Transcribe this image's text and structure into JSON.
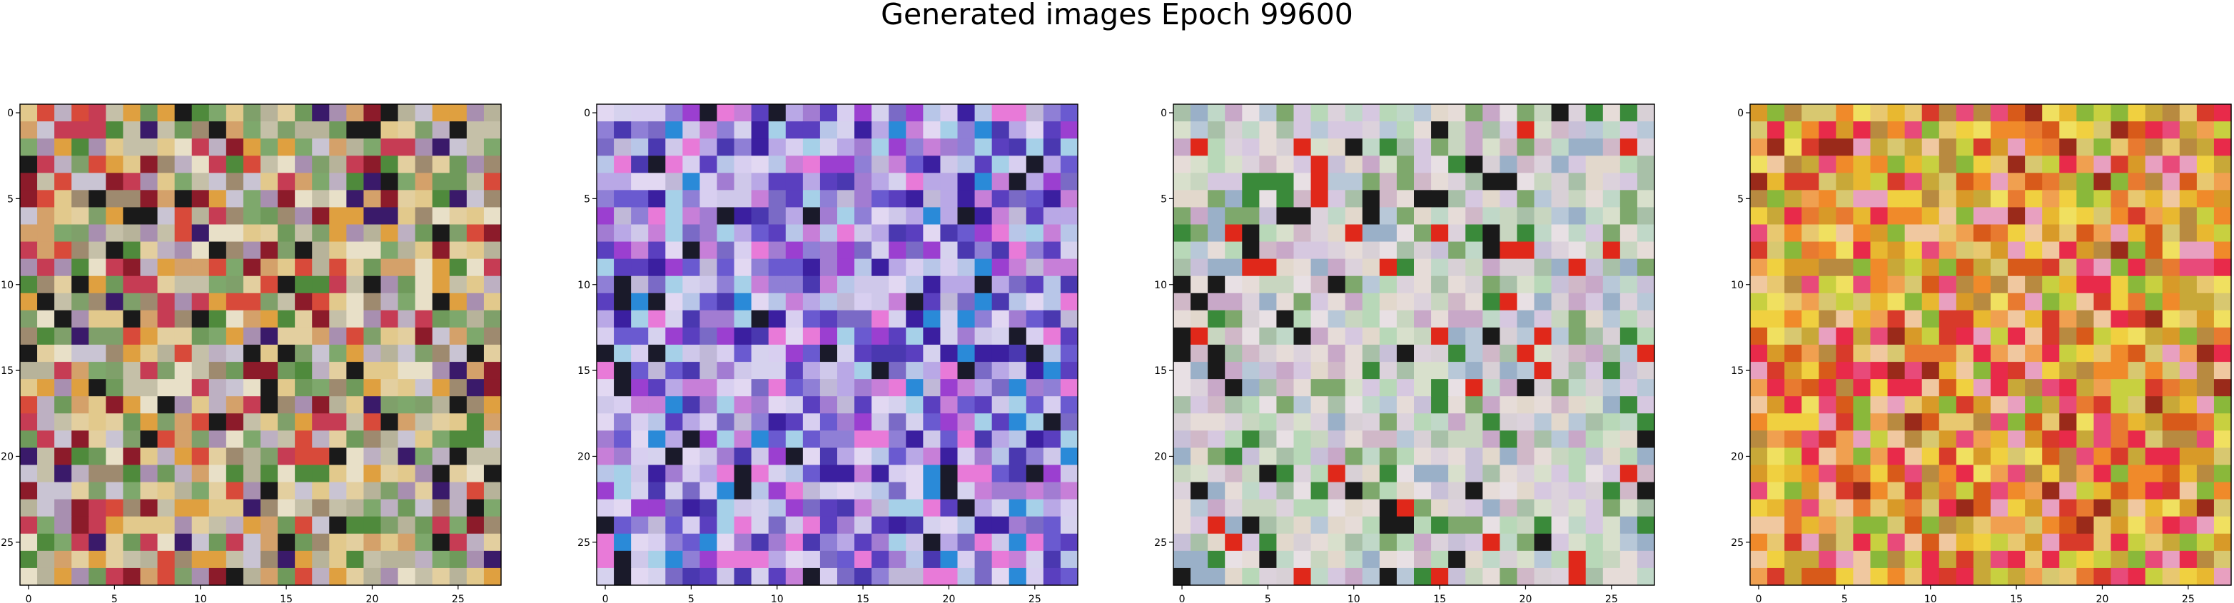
{
  "figure": {
    "title": "Generated images Epoch 99600"
  },
  "chart_data": [
    {
      "type": "heatmap",
      "title": "",
      "xlabel": "",
      "ylabel": "",
      "grid": "28x28 RGB image",
      "xlim": [
        -0.5,
        27.5
      ],
      "ylim": [
        27.5,
        -0.5
      ],
      "x_ticks": [
        0,
        5,
        10,
        15,
        20,
        25
      ],
      "y_ticks": [
        0,
        5,
        10,
        15,
        20,
        25
      ],
      "palette": [
        "#7fa06a",
        "#b7b39a",
        "#c5c0a8",
        "#6f9a5b",
        "#d4a16a",
        "#e2c98c",
        "#8c1b2a",
        "#1a1a1a",
        "#d84a3a",
        "#c9c4d3",
        "#a88fb0",
        "#e3cf9f",
        "#4f8a3c",
        "#c63c54",
        "#9e8a6f",
        "#e8e0c8",
        "#3a1a6a",
        "#dfa040",
        "#7ea86c",
        "#bdb0c2"
      ],
      "seed": 101
    },
    {
      "type": "heatmap",
      "title": "",
      "xlabel": "",
      "ylabel": "",
      "grid": "28x28 RGB image",
      "xlim": [
        -0.5,
        27.5
      ],
      "ylim": [
        27.5,
        -0.5
      ],
      "x_ticks": [
        0,
        5,
        10,
        15,
        20,
        25
      ],
      "y_ticks": [
        0,
        5,
        10,
        15,
        20,
        25
      ],
      "palette": [
        "#8f7fd6",
        "#b9a8e6",
        "#d8cff0",
        "#5a3fbf",
        "#3b1fa0",
        "#c77fd8",
        "#e2d8f2",
        "#7a6ac6",
        "#1a1a2a",
        "#a6d0e8",
        "#c0b8d8",
        "#6a5ad0",
        "#d6d2ee",
        "#9b3fd0",
        "#e87ad8",
        "#b8c6e8",
        "#4a38b0",
        "#cfc8ea",
        "#a27cd2",
        "#2a8ad8"
      ],
      "seed": 202
    },
    {
      "type": "heatmap",
      "title": "",
      "xlabel": "",
      "ylabel": "",
      "grid": "28x28 RGB image",
      "xlim": [
        -0.5,
        27.5
      ],
      "ylim": [
        27.5,
        -0.5
      ],
      "x_ticks": [
        0,
        5,
        10,
        15,
        20,
        25
      ],
      "y_ticks": [
        0,
        5,
        10,
        15,
        20,
        25
      ],
      "palette": [
        "#d8d0d6",
        "#c8d6c0",
        "#e6dcd8",
        "#b8c8d8",
        "#d6c8e0",
        "#c0d8c8",
        "#e8e0e4",
        "#a8c0a8",
        "#d0b8c8",
        "#1a1a1a",
        "#e0281a",
        "#3a8a3a",
        "#b8d8b8",
        "#c8c0d8",
        "#e2d8cc",
        "#9ab0c8",
        "#d8e0cc",
        "#c8a8c8",
        "#7ea86c",
        "#dcd2dc"
      ],
      "seed": 303
    },
    {
      "type": "heatmap",
      "title": "",
      "xlabel": "",
      "ylabel": "",
      "grid": "28x28 RGB image",
      "xlim": [
        -0.5,
        27.5
      ],
      "ylim": [
        27.5,
        -0.5
      ],
      "x_ticks": [
        0,
        5,
        10,
        15,
        20,
        25
      ],
      "y_ticks": [
        0,
        5,
        10,
        15,
        20,
        25
      ],
      "palette": [
        "#e8b830",
        "#e87a30",
        "#d83a2a",
        "#f0d040",
        "#c8a838",
        "#e84a7a",
        "#f0a050",
        "#d89a28",
        "#b88a40",
        "#f0e060",
        "#e82a4a",
        "#9a2a1a",
        "#d8c870",
        "#f08a2a",
        "#c8d040",
        "#e8c870",
        "#d85a1a",
        "#f0c8a0",
        "#8ab83a",
        "#e8a0c0"
      ],
      "seed": 404
    }
  ]
}
